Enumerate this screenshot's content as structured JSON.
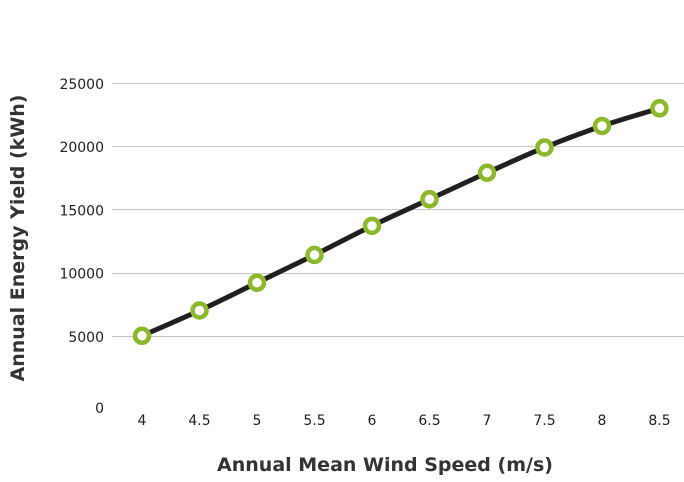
{
  "chart_data": {
    "type": "line",
    "title": "",
    "xlabel": "Annual Mean Wind Speed (m/s)",
    "ylabel": "Annual Energy Yield (kWh)",
    "x": [
      4,
      4.5,
      5,
      5.5,
      6,
      6.5,
      7,
      7.5,
      8,
      8.5
    ],
    "x_tick_labels": [
      "4",
      "4.5",
      "5",
      "5.5",
      "6",
      "6.5",
      "7",
      "7.5",
      "8",
      "8.5"
    ],
    "y_ticks": [
      0,
      5000,
      10000,
      15000,
      20000,
      25000
    ],
    "y_tick_labels": [
      "0",
      "5000",
      "10000",
      "15000",
      "20000",
      "25000"
    ],
    "ylim": [
      0,
      25000
    ],
    "grid": true,
    "series": [
      {
        "values": [
          5000,
          7000,
          9200,
          11400,
          13700,
          15800,
          17900,
          19900,
          21600,
          23000
        ],
        "line_color": "#231f20",
        "marker_color": "#8cb82b"
      }
    ]
  }
}
